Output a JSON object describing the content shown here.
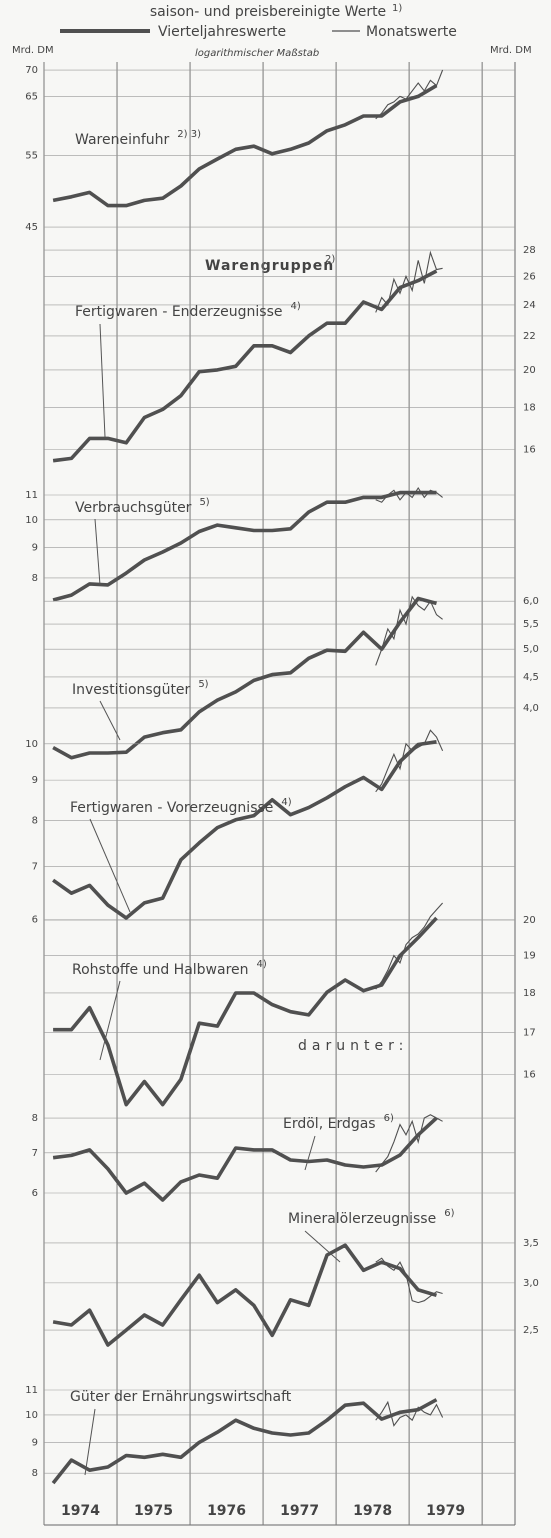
{
  "chart_data": {
    "type": "line",
    "title": "saison- und preisbereinigte Werte",
    "title_note": "1)",
    "legend": [
      {
        "name": "Vierteljahreswerte"
      },
      {
        "name": "Monatswerte"
      }
    ],
    "scale_note": "logarithmischer Maßstab",
    "y_unit_left": "Mrd. DM",
    "y_unit_right": "Mrd. DM",
    "log_scale": true,
    "color": "#505050",
    "xlim": [
      1974,
      1980.45
    ],
    "xticks": [
      {
        "value": 1974.5,
        "label": "1974"
      },
      {
        "value": 1975.5,
        "label": "1975"
      },
      {
        "value": 1976.5,
        "label": "1976"
      },
      {
        "value": 1977.5,
        "label": "1977"
      },
      {
        "value": 1978.5,
        "label": "1978"
      },
      {
        "value": 1979.5,
        "label": "1979"
      }
    ],
    "year_lines": [
      1974,
      1975,
      1976,
      1977,
      1978,
      1979,
      1980
    ],
    "x_quarterly": [
      1974.125,
      1974.375,
      1974.625,
      1974.875,
      1975.125,
      1975.375,
      1975.625,
      1975.875,
      1976.125,
      1976.375,
      1976.625,
      1976.875,
      1977.125,
      1977.375,
      1977.625,
      1977.875,
      1978.125,
      1978.375,
      1978.625,
      1978.875,
      1979.125,
      1979.375
    ],
    "x_monthly": [
      1978.542,
      1978.625,
      1978.708,
      1978.792,
      1978.875,
      1978.958,
      1979.042,
      1979.125,
      1979.208,
      1979.292,
      1979.375,
      1979.458
    ],
    "group_heading": "Warengruppen",
    "group_note": "2)",
    "subgroup_text": "darunter:",
    "panels": [
      {
        "label": "Wareneinfuhr",
        "note": "2) 3)",
        "axis": "y",
        "ylim": [
          44,
          71.6
        ],
        "yticks": [
          45,
          55,
          65,
          70
        ],
        "quarterly": [
          48.5,
          49.0,
          49.6,
          47.8,
          47.8,
          48.5,
          48.8,
          50.5,
          53,
          54.5,
          56,
          56.5,
          55.3,
          56,
          57,
          59,
          60,
          61.5,
          61.5,
          64,
          65,
          67
        ],
        "monthly": [
          61,
          62,
          63.5,
          64,
          65,
          64.5,
          66,
          67.5,
          66,
          68,
          67,
          70
        ]
      },
      {
        "label": "Fertigwaren - Enderzeugnisse",
        "note": "4)",
        "axis": "y2",
        "ylim": [
          15.1,
          28.8
        ],
        "yticks": [
          16,
          18,
          20,
          22,
          24,
          26,
          28
        ],
        "quarterly": [
          15.5,
          15.6,
          16.5,
          16.5,
          16.3,
          17.5,
          17.9,
          18.6,
          19.9,
          20.0,
          20.2,
          21.4,
          21.4,
          21.0,
          22.0,
          22.8,
          22.8,
          24.2,
          23.7,
          25.2,
          25.7,
          26.4
        ],
        "monthly": [
          23.5,
          24.5,
          24,
          25.8,
          24.8,
          26,
          25,
          27.2,
          25.5,
          27.8,
          26.5,
          26.6
        ]
      },
      {
        "label": "Verbrauchsgüter",
        "note": "5)",
        "axis": "y",
        "ylim": [
          6.94,
          11.43
        ],
        "yticks": [
          8,
          9,
          10,
          11
        ],
        "quarterly": [
          7.35,
          7.49,
          7.82,
          7.79,
          8.15,
          8.57,
          8.84,
          9.15,
          9.56,
          9.8,
          9.7,
          9.6,
          9.6,
          9.66,
          10.3,
          10.7,
          10.7,
          10.9,
          10.9,
          11.1,
          11.1,
          11.1
        ],
        "monthly": [
          10.8,
          10.7,
          11.0,
          11.2,
          10.8,
          11.1,
          10.9,
          11.3,
          10.9,
          11.2,
          11.1,
          10.9
        ]
      },
      {
        "label": "Investitionsgüter",
        "note": "5)",
        "axis": "y2",
        "ylim": [
          3.22,
          6.26
        ],
        "yticks": [
          {
            "value": 4,
            "label": "4,0"
          },
          {
            "value": 4.5,
            "label": "4,5"
          },
          {
            "value": 5,
            "label": "5,0"
          },
          {
            "value": 5.5,
            "label": "5,5"
          },
          {
            "value": 6,
            "label": "6,0"
          }
        ],
        "quarterly": [
          3.44,
          3.31,
          3.37,
          3.37,
          3.38,
          3.58,
          3.64,
          3.68,
          3.94,
          4.12,
          4.25,
          4.44,
          4.54,
          4.57,
          4.83,
          4.98,
          4.96,
          5.33,
          5.0,
          5.54,
          6.06,
          5.95
        ],
        "monthly": [
          4.7,
          5.0,
          5.4,
          5.2,
          5.8,
          5.5,
          6.1,
          5.9,
          5.8,
          6.0,
          5.7,
          5.6
        ]
      },
      {
        "label": "Fertigwaren - Vorerzeugnisse",
        "note": "4)",
        "axis": "y",
        "ylim": [
          5.74,
          10.26
        ],
        "yticks": [
          6,
          7,
          8,
          9,
          10
        ],
        "quarterly": [
          6.73,
          6.48,
          6.63,
          6.26,
          6.03,
          6.3,
          6.39,
          7.14,
          7.5,
          7.84,
          8.02,
          8.12,
          8.5,
          8.14,
          8.31,
          8.55,
          8.83,
          9.07,
          8.76,
          9.5,
          9.98,
          10.06
        ],
        "monthly": [
          8.7,
          8.9,
          9.3,
          9.7,
          9.3,
          10.0,
          9.8,
          9.9,
          10.0,
          10.4,
          10.2,
          9.8
        ]
      },
      {
        "label": "Rohstoffe und Halbwaren",
        "note": "4)",
        "axis": "y2",
        "ylim": [
          15.2,
          20.44
        ],
        "yticks": [
          16,
          17,
          18,
          19,
          20
        ],
        "quarterly": [
          17.07,
          17.07,
          17.62,
          16.7,
          15.32,
          15.84,
          15.32,
          15.89,
          17.23,
          17.16,
          18.0,
          18.0,
          17.7,
          17.52,
          17.44,
          18.02,
          18.34,
          18.06,
          18.21,
          19.0,
          19.5,
          20.06
        ],
        "monthly": [
          18.1,
          18.3,
          18.6,
          19.0,
          18.8,
          19.3,
          19.5,
          19.6,
          19.8,
          20.1,
          20.3,
          20.5
        ]
      },
      {
        "label": "Erdöl, Erdgas",
        "note": "6)",
        "axis": "y",
        "ylim": [
          5.73,
          8.25
        ],
        "yticks": [
          6,
          7,
          8
        ],
        "quarterly": [
          6.87,
          6.93,
          7.08,
          6.58,
          6.0,
          6.23,
          5.84,
          6.26,
          6.43,
          6.35,
          7.13,
          7.08,
          7.08,
          6.81,
          6.77,
          6.81,
          6.68,
          6.63,
          6.68,
          6.94,
          7.5,
          8.0
        ],
        "monthly": [
          6.5,
          6.7,
          6.9,
          7.3,
          7.8,
          7.5,
          7.9,
          7.3,
          8.0,
          8.1,
          8.0,
          7.9
        ]
      },
      {
        "label": "Mineralölerzeugnisse",
        "note": "6)",
        "axis": "y2",
        "ylim": [
          2.36,
          3.68
        ],
        "yticks": [
          {
            "value": 2.5,
            "label": "2,5"
          },
          {
            "value": 3,
            "label": "3,0"
          },
          {
            "value": 3.5,
            "label": "3,5"
          }
        ],
        "quarterly": [
          2.58,
          2.55,
          2.7,
          2.36,
          2.5,
          2.65,
          2.55,
          2.81,
          3.09,
          2.78,
          2.92,
          2.75,
          2.45,
          2.81,
          2.75,
          3.34,
          3.47,
          3.15,
          3.25,
          3.17,
          2.92,
          2.86
        ],
        "monthly": [
          3.25,
          3.3,
          3.2,
          3.15,
          3.25,
          3.1,
          2.8,
          2.78,
          2.8,
          2.85,
          2.9,
          2.88
        ]
      },
      {
        "label": "Güter der Ernährungswirtschaft",
        "axis": "y",
        "ylim": [
          7.5,
          11.43
        ],
        "yticks": [
          8,
          9,
          10,
          11
        ],
        "quarterly": [
          7.7,
          8.41,
          8.09,
          8.19,
          8.56,
          8.5,
          8.6,
          8.5,
          9.0,
          9.36,
          9.8,
          9.5,
          9.33,
          9.26,
          9.33,
          9.8,
          10.38,
          10.46,
          9.84,
          10.1,
          10.2,
          10.6
        ],
        "monthly": [
          9.8,
          10.1,
          10.5,
          9.6,
          9.9,
          10.0,
          9.8,
          10.3,
          10.1,
          10.0,
          10.4,
          9.9
        ]
      }
    ]
  }
}
